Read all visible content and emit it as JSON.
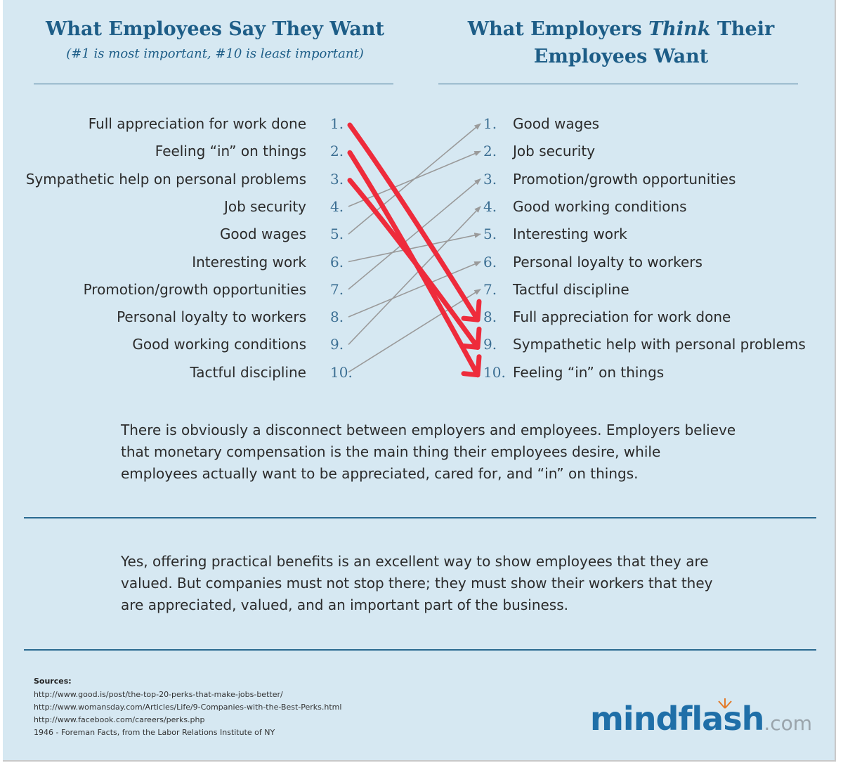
{
  "left_heading": "What Employees Say They Want",
  "left_subheading": "(#1 is most important, #10 is least important)",
  "right_heading": {
    "part1": "What Employers ",
    "emphasis": "Think",
    "part2": " Their",
    "line2": "Employees Want"
  },
  "left_list": [
    {
      "num": "1.",
      "label": "Full appreciation for work done"
    },
    {
      "num": "2.",
      "label": "Feeling “in” on things"
    },
    {
      "num": "3.",
      "label": "Sympathetic help on personal problems"
    },
    {
      "num": "4.",
      "label": "Job security"
    },
    {
      "num": "5.",
      "label": "Good wages"
    },
    {
      "num": "6.",
      "label": "Interesting work"
    },
    {
      "num": "7.",
      "label": "Promotion/growth opportunities"
    },
    {
      "num": "8.",
      "label": "Personal loyalty to workers"
    },
    {
      "num": "9.",
      "label": "Good working conditions"
    },
    {
      "num": "10.",
      "label": "Tactful discipline"
    }
  ],
  "right_list": [
    {
      "num": "1.",
      "label": "Good wages"
    },
    {
      "num": "2.",
      "label": "Job security"
    },
    {
      "num": "3.",
      "label": "Promotion/growth opportunities"
    },
    {
      "num": "4.",
      "label": "Good working conditions"
    },
    {
      "num": "5.",
      "label": "Interesting work"
    },
    {
      "num": "6.",
      "label": "Personal loyalty to workers"
    },
    {
      "num": "7.",
      "label": "Tactful discipline"
    },
    {
      "num": "8.",
      "label": "Full appreciation for work done"
    },
    {
      "num": "9.",
      "label": "Sympathetic help with personal problems"
    },
    {
      "num": "10.",
      "label": "Feeling “in” on things"
    }
  ],
  "connections": [
    {
      "from": 1,
      "to": 8,
      "highlight": true
    },
    {
      "from": 2,
      "to": 10,
      "highlight": true
    },
    {
      "from": 3,
      "to": 9,
      "highlight": true
    },
    {
      "from": 4,
      "to": 2,
      "highlight": false
    },
    {
      "from": 5,
      "to": 1,
      "highlight": false
    },
    {
      "from": 6,
      "to": 5,
      "highlight": false
    },
    {
      "from": 7,
      "to": 3,
      "highlight": false
    },
    {
      "from": 8,
      "to": 6,
      "highlight": false
    },
    {
      "from": 9,
      "to": 4,
      "highlight": false
    },
    {
      "from": 10,
      "to": 7,
      "highlight": false
    }
  ],
  "paragraph1": "There is obviously a disconnect between employers and employees. Employers believe that monetary compensation is the main thing their employees desire, while employees actually want to be appreciated, cared for, and “in” on things.",
  "paragraph2": "Yes, offering practical benefits is an excellent way to show employees that they are valued. But companies must not stop there; they must show their workers that they are appreciated, valued, and an important part of the business.",
  "sources_title": "Sources:",
  "sources": [
    "http://www.good.is/post/the-top-20-perks-that-make-jobs-better/",
    "http://www.womansday.com/Articles/Life/9-Companies-with-the-Best-Perks.html",
    "http://www.facebook.com/careers/perks.php",
    "1946 - Foreman Facts, from the Labor Relations Institute of NY"
  ],
  "logo": {
    "name": "mindflash",
    "tld": ".com"
  },
  "colors": {
    "highlight_arrow": "#ee2b3b",
    "connector": "#9a9a9a",
    "heading": "#1d5d87"
  }
}
